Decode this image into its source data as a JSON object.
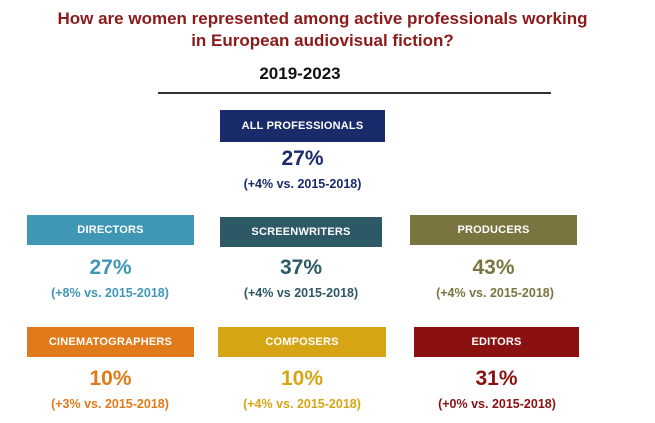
{
  "title_line1": "How are women represented among active professionals working",
  "title_line2": "in European audiovisual fiction?",
  "period": "2019-2023",
  "colors": {
    "title": "#8b1a1a",
    "all": "#1a2b6b",
    "directors": "#3f97b5",
    "screenwriters": "#2d5866",
    "producers": "#7a7540",
    "cinematographers": "#e07a1a",
    "composers": "#d6a516",
    "editors": "#8b1111"
  },
  "chart_data": {
    "type": "table",
    "title": "How are women represented among active professionals working in European audiovisual fiction?",
    "period": "2019-2023",
    "unit": "% women",
    "categories": [
      "ALL PROFESSIONALS",
      "DIRECTORS",
      "SCREENWRITERS",
      "PRODUCERS",
      "CINEMATOGRAPHERS",
      "COMPOSERS",
      "EDITORS"
    ],
    "values": [
      27,
      27,
      37,
      43,
      10,
      10,
      31
    ],
    "change_vs_2015_2018_pp": [
      4,
      8,
      4,
      4,
      3,
      4,
      0
    ],
    "items": {
      "all": {
        "label": "ALL PROFESSIONALS",
        "value": "27%",
        "change": "(+4% vs. 2015-2018)"
      },
      "directors": {
        "label": "DIRECTORS",
        "value": "27%",
        "change": "(+8% vs. 2015-2018)"
      },
      "screenwriters": {
        "label": "SCREENWRITERS",
        "value": "37%",
        "change": "(+4% vs 2015-2018)"
      },
      "producers": {
        "label": "PRODUCERS",
        "value": "43%",
        "change": "(+4% vs. 2015-2018)"
      },
      "cinematographers": {
        "label": "CINEMATOGRAPHERS",
        "value": "10%",
        "change": "(+3% vs. 2015-2018)"
      },
      "composers": {
        "label": "COMPOSERS",
        "value": "10%",
        "change": "(+4% vs. 2015-2018)"
      },
      "editors": {
        "label": "EDITORS",
        "value": "31%",
        "change": "(+0% vs. 2015-2018)"
      }
    }
  }
}
